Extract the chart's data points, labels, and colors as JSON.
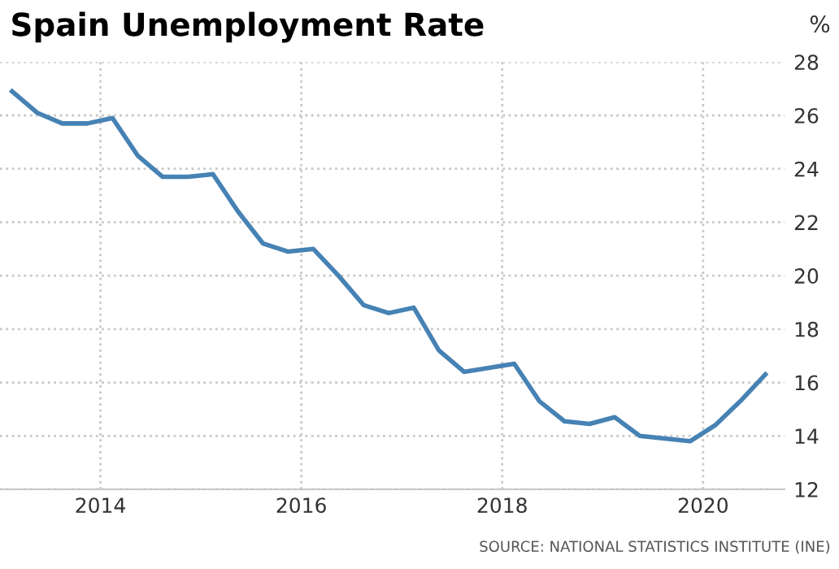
{
  "chart_data": {
    "type": "line",
    "title": "Spain Unemployment Rate",
    "ylabel": "%",
    "annotations": [
      "SOURCE: NATIONAL STATISTICS INSTITUTE (INE)"
    ],
    "x": [
      2013.12,
      2013.37,
      2013.62,
      2013.87,
      2014.12,
      2014.37,
      2014.62,
      2014.87,
      2015.12,
      2015.37,
      2015.62,
      2015.87,
      2016.12,
      2016.37,
      2016.62,
      2016.87,
      2017.12,
      2017.37,
      2017.62,
      2017.87,
      2018.12,
      2018.37,
      2018.62,
      2018.87,
      2019.12,
      2019.37,
      2019.62,
      2019.87,
      2020.12,
      2020.37,
      2020.62
    ],
    "series": [
      {
        "color": "#4682b4",
        "values": [
          26.9,
          26.1,
          25.7,
          25.7,
          25.9,
          24.5,
          23.7,
          23.7,
          23.8,
          22.4,
          21.2,
          20.9,
          21.0,
          20.0,
          18.9,
          18.6,
          18.8,
          17.2,
          16.4,
          16.55,
          16.7,
          15.3,
          14.55,
          14.45,
          14.7,
          14.0,
          13.9,
          13.8,
          14.4,
          15.3,
          16.3
        ]
      }
    ],
    "xlim": [
      2013.0,
      2020.81
    ],
    "xticks": [
      2014,
      2016,
      2018,
      2020
    ],
    "ylim": [
      12,
      28
    ],
    "yticks": [
      12,
      14,
      16,
      18,
      20,
      22,
      24,
      26,
      28
    ],
    "grid": true,
    "legend": false,
    "marker": "none",
    "line_style": "solid"
  }
}
